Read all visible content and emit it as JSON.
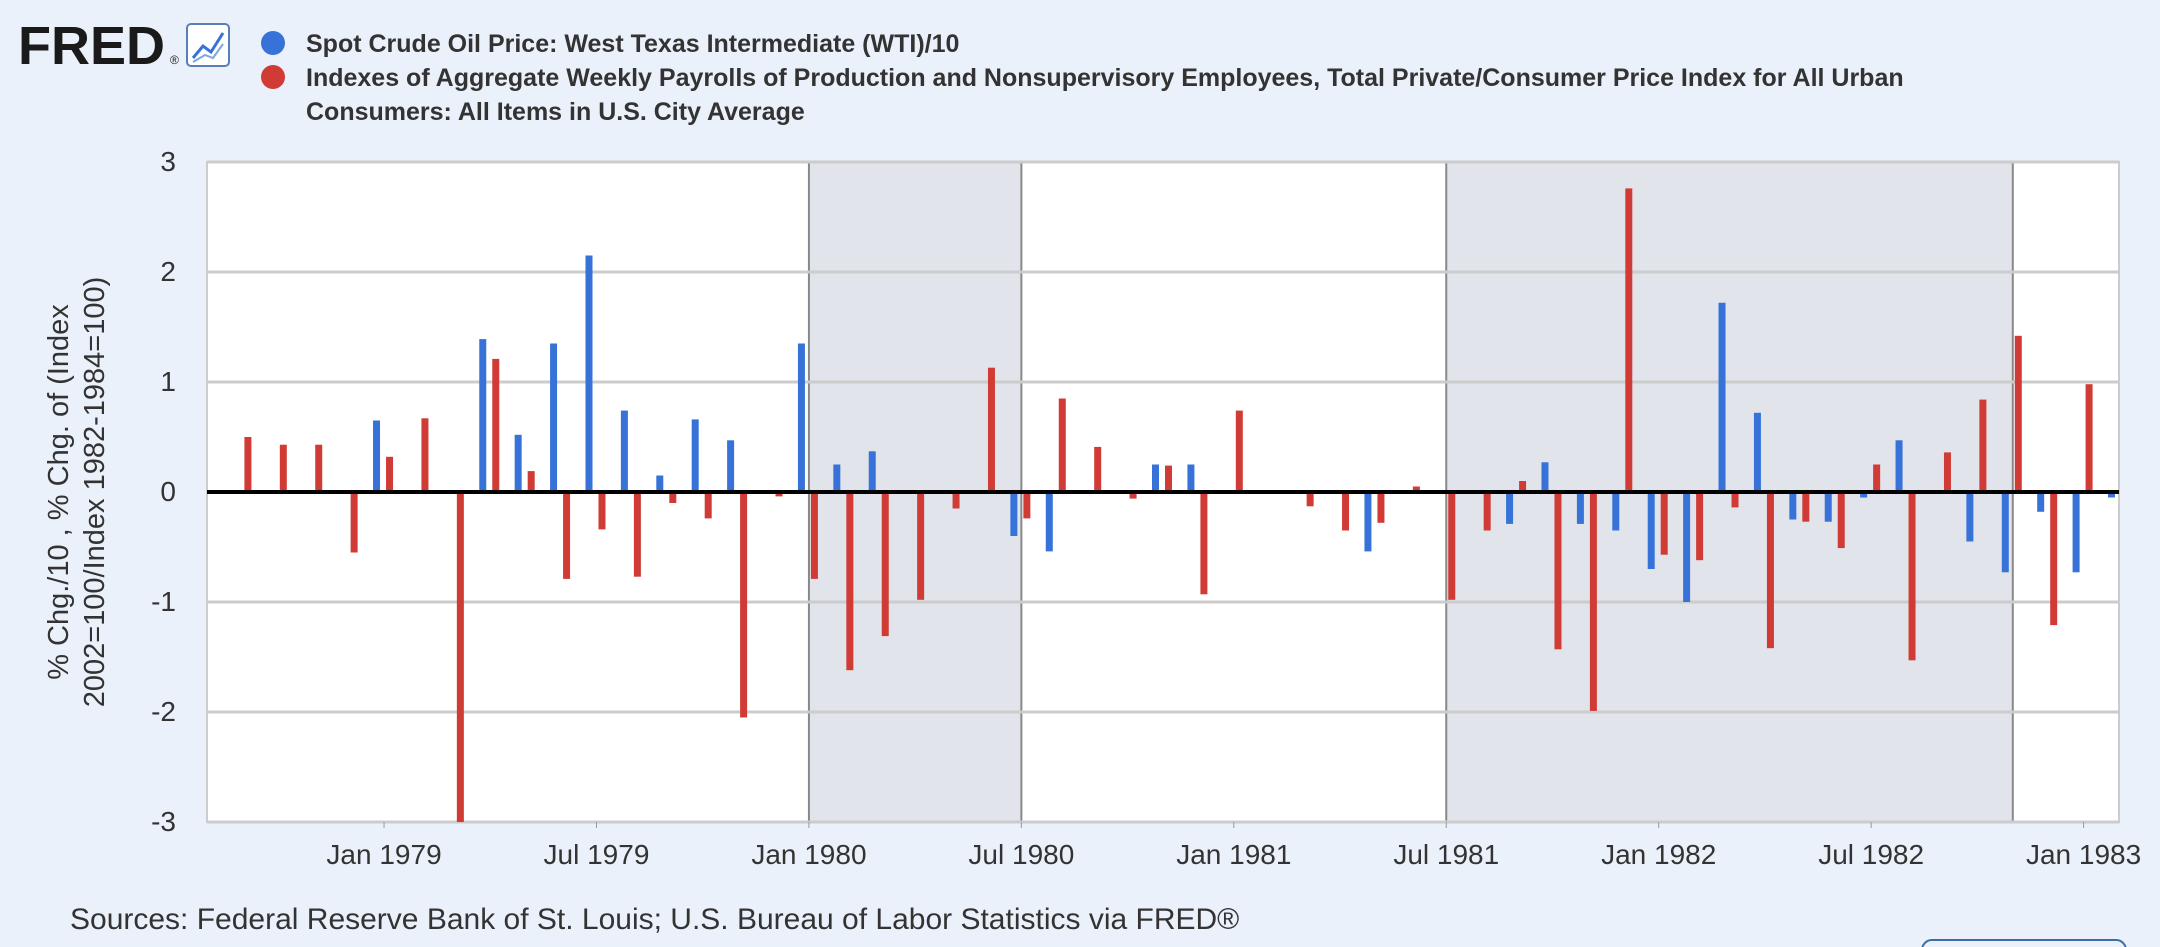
{
  "header": {
    "logo_text": "FRED",
    "logo_mark": "®",
    "chart_icon": "line-chart-icon"
  },
  "legend": [
    {
      "label": "Spot Crude Oil Price: West Texas Intermediate (WTI)/10",
      "color": "#3672d8"
    },
    {
      "label_lines": [
        "Indexes of Aggregate Weekly Payrolls of Production and Nonsupervisory Employees, Total Private/Consumer Price Index for All Urban",
        "Consumers: All Items in U.S. City Average"
      ],
      "color": "#d03b35"
    }
  ],
  "footer": {
    "source": "Sources: Federal Reserve Bank of St. Louis; U.S. Bureau of Labor Statistics via FRED®"
  },
  "chart_data": {
    "type": "bar",
    "ylabel_lines": [
      "% Chg./10 , % Chg. of (Index",
      "2002=100/Index 1982-1984=100)"
    ],
    "ylim": [
      -3,
      3
    ],
    "yticks": [
      3,
      2,
      1,
      0,
      -1,
      -2,
      -3
    ],
    "x_start": "1978-08",
    "x_end": "1983-02",
    "xticks": [
      {
        "label": "Jan 1979",
        "date": "1979-01"
      },
      {
        "label": "Jul 1979",
        "date": "1979-07"
      },
      {
        "label": "Jan 1980",
        "date": "1980-01"
      },
      {
        "label": "Jul 1980",
        "date": "1980-07"
      },
      {
        "label": "Jan 1981",
        "date": "1981-01"
      },
      {
        "label": "Jul 1981",
        "date": "1981-07"
      },
      {
        "label": "Jan 1982",
        "date": "1982-01"
      },
      {
        "label": "Jul 1982",
        "date": "1982-07"
      },
      {
        "label": "Jan 1983",
        "date": "1983-01"
      }
    ],
    "recessions": [
      [
        "1980-01",
        "1980-07"
      ],
      [
        "1981-07",
        "1982-11"
      ]
    ],
    "grid": true,
    "legend_position": "top",
    "dates": [
      "1978-09",
      "1978-10",
      "1978-11",
      "1978-12",
      "1979-01",
      "1979-02",
      "1979-03",
      "1979-04",
      "1979-05",
      "1979-06",
      "1979-07",
      "1979-08",
      "1979-09",
      "1979-10",
      "1979-11",
      "1979-12",
      "1980-01",
      "1980-02",
      "1980-03",
      "1980-04",
      "1980-05",
      "1980-06",
      "1980-07",
      "1980-08",
      "1980-09",
      "1980-10",
      "1980-11",
      "1980-12",
      "1981-01",
      "1981-02",
      "1981-03",
      "1981-04",
      "1981-05",
      "1981-06",
      "1981-07",
      "1981-08",
      "1981-09",
      "1981-10",
      "1981-11",
      "1981-12",
      "1982-01",
      "1982-02",
      "1982-03",
      "1982-04",
      "1982-05",
      "1982-06",
      "1982-07",
      "1982-08",
      "1982-09",
      "1982-10",
      "1982-11",
      "1982-12",
      "1983-01",
      "1983-02"
    ],
    "series": [
      {
        "name": "Spot Crude Oil Price: West Texas Intermediate (WTI)/10",
        "color": "#3672d8",
        "values": [
          0,
          0,
          0,
          0,
          0.65,
          0,
          0,
          1.39,
          0.52,
          1.35,
          2.15,
          0.74,
          0.15,
          0.66,
          0.47,
          0,
          1.35,
          0.25,
          0.37,
          0,
          0,
          0,
          -0.4,
          -0.54,
          0,
          0,
          0.25,
          0.25,
          0,
          0,
          0,
          0,
          -0.54,
          0,
          0,
          0,
          -0.29,
          0.27,
          -0.29,
          -0.35,
          -0.7,
          -1.0,
          1.72,
          0.72,
          -0.25,
          -0.27,
          -0.05,
          0.47,
          0,
          -0.45,
          -0.73,
          -0.18,
          -0.73,
          -0.05
        ]
      },
      {
        "name": "Indexes of Aggregate Weekly Payrolls of Production and Nonsupervisory Employees, Total Private/Consumer Price Index for All Urban Consumers: All Items in U.S. City Average",
        "color": "#d03b35",
        "values": [
          0.5,
          0.43,
          0.43,
          -0.55,
          0.32,
          0.67,
          -3.0,
          1.21,
          0.19,
          -0.79,
          -0.34,
          -0.77,
          -0.1,
          -0.24,
          -2.05,
          -0.04,
          -0.79,
          -1.62,
          -1.31,
          -0.98,
          -0.15,
          1.13,
          -0.24,
          0.85,
          0.41,
          -0.06,
          0.24,
          -0.93,
          0.74,
          0,
          -0.13,
          -0.35,
          -0.28,
          0.05,
          -0.98,
          -0.35,
          0.1,
          -1.43,
          -1.99,
          2.76,
          -0.57,
          -0.62,
          -0.14,
          -1.42,
          -0.27,
          -0.51,
          0.25,
          -1.53,
          0.36,
          0.84,
          1.42,
          -1.21,
          0.98,
          0
        ]
      }
    ]
  }
}
